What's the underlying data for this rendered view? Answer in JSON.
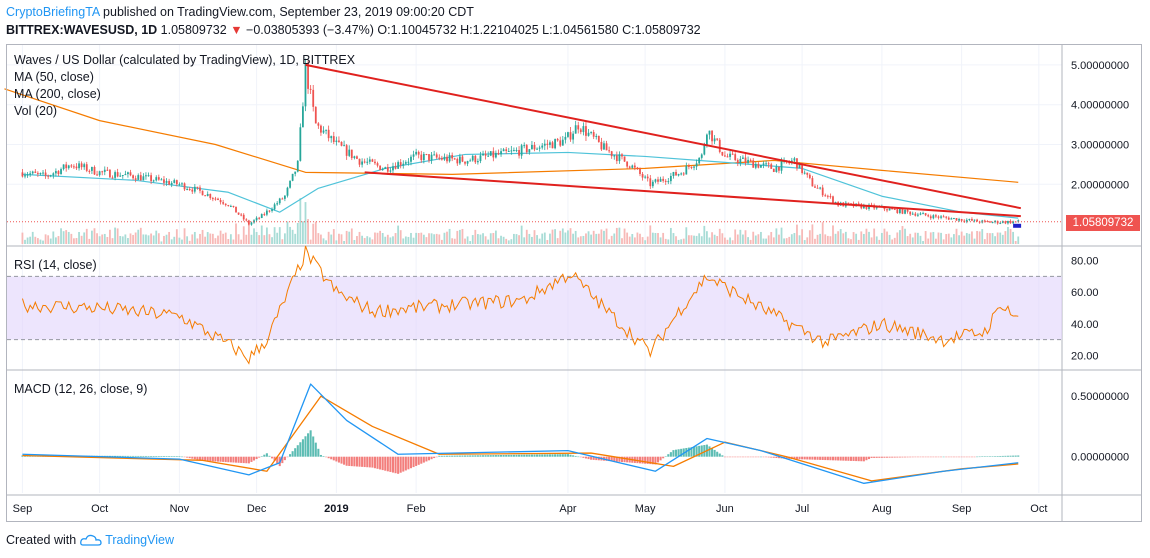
{
  "header": {
    "publisher": "CryptoBriefingTA",
    "published_text": "published on TradingView.com, September 23, 2019 09:00:20 CDT",
    "symbol_line": "BITTREX:WAVESUSD, 1D",
    "last": "1.05809732",
    "change_arrow": "▼",
    "change": "−0.03805393 (−3.47%)",
    "ohlc": "O:1.10045732 H:1.22104025 L:1.04561580 C:1.05809732"
  },
  "legend": {
    "title": "Waves / US Dollar (calculated by TradingView), 1D, BITTREX",
    "ma50": "MA (50, close)",
    "ma200": "MA (200, close)",
    "vol": "Vol (20)",
    "rsi": "RSI (14, close)",
    "macd": "MACD (12, 26, close, 9)"
  },
  "price_tag": "1.05809732",
  "footer": {
    "created_with": "Created with",
    "brand": "TradingView"
  },
  "colors": {
    "up": "#26a69a",
    "down": "#ef5350",
    "ma50": "#4fc3d9",
    "ma200": "#f57c00",
    "trend": "#e0211e",
    "rsi": "#f57c00",
    "rsi_band": "#e1d4fb",
    "macd": "#2196f3",
    "signal": "#f57c00"
  },
  "chart_data": [
    {
      "type": "candlestick",
      "title": "Waves / US Dollar (calculated by TradingView), 1D, BITTREX",
      "x_ticks": [
        "Sep",
        "Oct",
        "Nov",
        "Dec",
        "2019",
        "Feb",
        "Apr",
        "May",
        "Jun",
        "Jul",
        "Aug",
        "Sep",
        "Oct"
      ],
      "y_ticks": [
        "5.00000000",
        "4.00000000",
        "3.00000000",
        "2.00000000"
      ],
      "ylim": [
        0.5,
        5.5
      ],
      "close_path": [
        {
          "x": "2018-09-01",
          "y": 2.3
        },
        {
          "x": "2018-09-10",
          "y": 2.2
        },
        {
          "x": "2018-09-20",
          "y": 2.5
        },
        {
          "x": "2018-10-01",
          "y": 2.3
        },
        {
          "x": "2018-10-15",
          "y": 2.2
        },
        {
          "x": "2018-11-01",
          "y": 2.0
        },
        {
          "x": "2018-11-10",
          "y": 1.8
        },
        {
          "x": "2018-11-20",
          "y": 1.5
        },
        {
          "x": "2018-11-28",
          "y": 1.0
        },
        {
          "x": "2018-12-03",
          "y": 1.2
        },
        {
          "x": "2018-12-12",
          "y": 1.7
        },
        {
          "x": "2018-12-17",
          "y": 2.5
        },
        {
          "x": "2018-12-20",
          "y": 4.9
        },
        {
          "x": "2018-12-24",
          "y": 3.5
        },
        {
          "x": "2019-01-01",
          "y": 3.0
        },
        {
          "x": "2019-01-10",
          "y": 2.6
        },
        {
          "x": "2019-01-20",
          "y": 2.4
        },
        {
          "x": "2019-02-01",
          "y": 2.7
        },
        {
          "x": "2019-02-20",
          "y": 2.6
        },
        {
          "x": "2019-03-10",
          "y": 2.8
        },
        {
          "x": "2019-03-31",
          "y": 3.1
        },
        {
          "x": "2019-04-05",
          "y": 3.5
        },
        {
          "x": "2019-04-15",
          "y": 2.9
        },
        {
          "x": "2019-04-25",
          "y": 2.5
        },
        {
          "x": "2019-05-03",
          "y": 2.0
        },
        {
          "x": "2019-05-15",
          "y": 2.3
        },
        {
          "x": "2019-05-23",
          "y": 2.7
        },
        {
          "x": "2019-05-25",
          "y": 3.4
        },
        {
          "x": "2019-06-01",
          "y": 2.7
        },
        {
          "x": "2019-06-20",
          "y": 2.4
        },
        {
          "x": "2019-06-28",
          "y": 2.6
        },
        {
          "x": "2019-07-05",
          "y": 2.0
        },
        {
          "x": "2019-07-15",
          "y": 1.5
        },
        {
          "x": "2019-08-01",
          "y": 1.4
        },
        {
          "x": "2019-08-20",
          "y": 1.2
        },
        {
          "x": "2019-09-10",
          "y": 1.05
        },
        {
          "x": "2019-09-23",
          "y": 1.058
        }
      ],
      "ma50": [
        {
          "x": "2018-09-01",
          "y": 2.25
        },
        {
          "x": "2018-10-15",
          "y": 2.1
        },
        {
          "x": "2018-11-20",
          "y": 1.8
        },
        {
          "x": "2018-12-10",
          "y": 1.3
        },
        {
          "x": "2018-12-25",
          "y": 1.9
        },
        {
          "x": "2019-01-20",
          "y": 2.4
        },
        {
          "x": "2019-02-20",
          "y": 2.75
        },
        {
          "x": "2019-04-01",
          "y": 2.8
        },
        {
          "x": "2019-05-01",
          "y": 2.7
        },
        {
          "x": "2019-06-01",
          "y": 2.55
        },
        {
          "x": "2019-07-01",
          "y": 2.4
        },
        {
          "x": "2019-08-01",
          "y": 1.7
        },
        {
          "x": "2019-09-01",
          "y": 1.3
        },
        {
          "x": "2019-09-23",
          "y": 1.15
        }
      ],
      "ma200": [
        {
          "x": "2018-08-25",
          "y": 4.4
        },
        {
          "x": "2018-10-01",
          "y": 3.6
        },
        {
          "x": "2018-11-15",
          "y": 3.0
        },
        {
          "x": "2018-12-20",
          "y": 2.3
        },
        {
          "x": "2019-02-15",
          "y": 2.25
        },
        {
          "x": "2019-05-01",
          "y": 2.4
        },
        {
          "x": "2019-06-20",
          "y": 2.6
        },
        {
          "x": "2019-08-01",
          "y": 2.35
        },
        {
          "x": "2019-09-23",
          "y": 2.05
        }
      ],
      "trendlines": [
        {
          "from": {
            "x": "2018-12-20",
            "y": 5.0
          },
          "to": {
            "x": "2019-09-24",
            "y": 1.4
          }
        },
        {
          "from": {
            "x": "2019-01-12",
            "y": 2.3
          },
          "to": {
            "x": "2019-09-24",
            "y": 1.2
          }
        }
      ],
      "last_price": 1.05809732
    },
    {
      "type": "line",
      "title": "RSI (14, close)",
      "y_ticks": [
        "80.00",
        "60.00",
        "40.00",
        "20.00"
      ],
      "ylim": [
        12,
        88
      ],
      "band": [
        30,
        70
      ],
      "series": [
        {
          "values": [
            {
              "x": "2018-09-01",
              "y": 52
            },
            {
              "x": "2018-10-01",
              "y": 50
            },
            {
              "x": "2018-11-01",
              "y": 45
            },
            {
              "x": "2018-11-22",
              "y": 25
            },
            {
              "x": "2018-11-28",
              "y": 18
            },
            {
              "x": "2018-12-05",
              "y": 30
            },
            {
              "x": "2018-12-12",
              "y": 55
            },
            {
              "x": "2018-12-20",
              "y": 85
            },
            {
              "x": "2019-01-01",
              "y": 60
            },
            {
              "x": "2019-01-15",
              "y": 48
            },
            {
              "x": "2019-02-15",
              "y": 52
            },
            {
              "x": "2019-03-15",
              "y": 55
            },
            {
              "x": "2019-04-02",
              "y": 72
            },
            {
              "x": "2019-04-15",
              "y": 50
            },
            {
              "x": "2019-05-03",
              "y": 22
            },
            {
              "x": "2019-05-15",
              "y": 50
            },
            {
              "x": "2019-05-25",
              "y": 70
            },
            {
              "x": "2019-06-15",
              "y": 50
            },
            {
              "x": "2019-07-10",
              "y": 28
            },
            {
              "x": "2019-08-01",
              "y": 40
            },
            {
              "x": "2019-08-25",
              "y": 30
            },
            {
              "x": "2019-09-10",
              "y": 35
            },
            {
              "x": "2019-09-17",
              "y": 53
            },
            {
              "x": "2019-09-23",
              "y": 42
            }
          ]
        }
      ]
    },
    {
      "type": "line",
      "title": "MACD (12, 26, close, 9)",
      "y_ticks": [
        "0.50000000",
        "0.00000000"
      ],
      "ylim": [
        -0.3,
        0.7
      ],
      "series": [
        {
          "values": [
            {
              "x": "2018-09-01",
              "y": 0.02
            },
            {
              "x": "2018-11-01",
              "y": -0.02
            },
            {
              "x": "2018-11-28",
              "y": -0.15
            },
            {
              "x": "2018-12-10",
              "y": -0.05
            },
            {
              "x": "2018-12-22",
              "y": 0.6
            },
            {
              "x": "2019-01-05",
              "y": 0.3
            },
            {
              "x": "2019-01-25",
              "y": 0.02
            },
            {
              "x": "2019-04-01",
              "y": 0.05
            },
            {
              "x": "2019-05-05",
              "y": -0.12
            },
            {
              "x": "2019-05-25",
              "y": 0.15
            },
            {
              "x": "2019-06-15",
              "y": 0.05
            },
            {
              "x": "2019-07-25",
              "y": -0.22
            },
            {
              "x": "2019-08-25",
              "y": -0.12
            },
            {
              "x": "2019-09-23",
              "y": -0.05
            }
          ]
        },
        {
          "values": [
            {
              "x": "2018-09-01",
              "y": 0.01
            },
            {
              "x": "2018-11-10",
              "y": -0.03
            },
            {
              "x": "2018-12-05",
              "y": -0.12
            },
            {
              "x": "2018-12-26",
              "y": 0.5
            },
            {
              "x": "2019-01-15",
              "y": 0.25
            },
            {
              "x": "2019-02-10",
              "y": 0.02
            },
            {
              "x": "2019-04-10",
              "y": 0.03
            },
            {
              "x": "2019-05-12",
              "y": -0.08
            },
            {
              "x": "2019-06-01",
              "y": 0.12
            },
            {
              "x": "2019-06-25",
              "y": 0.0
            },
            {
              "x": "2019-07-28",
              "y": -0.2
            },
            {
              "x": "2019-09-01",
              "y": -0.1
            },
            {
              "x": "2019-09-23",
              "y": -0.06
            }
          ]
        }
      ]
    }
  ]
}
